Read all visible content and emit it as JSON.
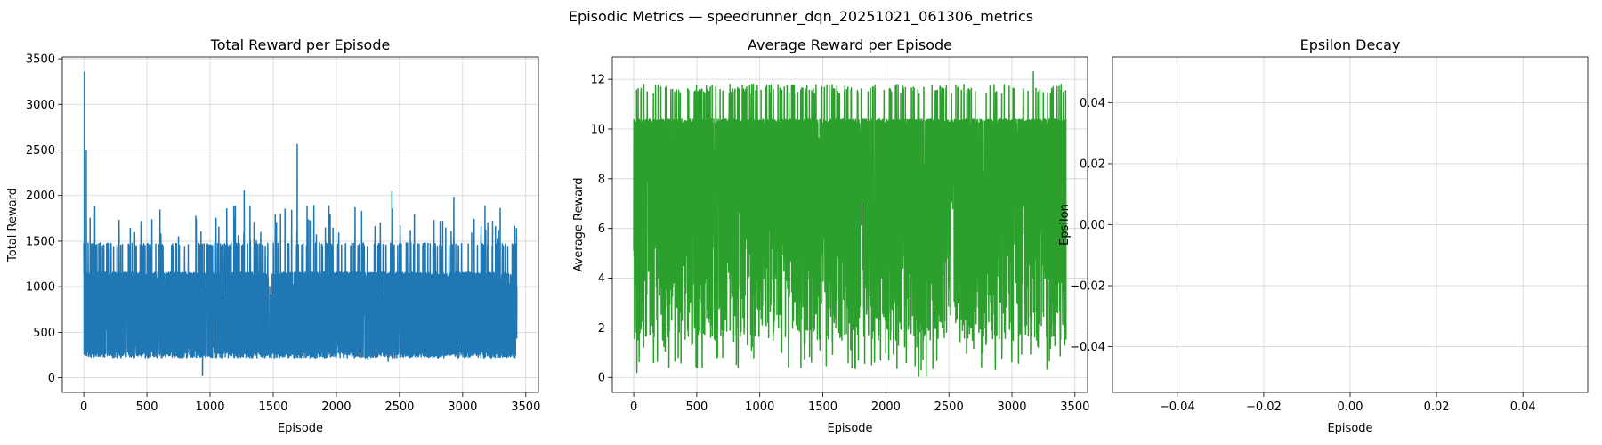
{
  "figure": {
    "suptitle": "Episodic Metrics — speedrunner_dqn_20251021_061306_metrics"
  },
  "chart_data": [
    {
      "type": "line",
      "title": "Total Reward per Episode",
      "xlabel": "Episode",
      "ylabel": "Total Reward",
      "xlim": [
        -170,
        3600
      ],
      "ylim": [
        -160,
        3520
      ],
      "xticks": [
        0,
        500,
        1000,
        1500,
        2000,
        2500,
        3000,
        3500
      ],
      "yticks": [
        0,
        500,
        1000,
        1500,
        2000,
        2500,
        3000,
        3500
      ],
      "grid": true,
      "series": [
        {
          "name": "Total Reward",
          "color": "#1f77b4",
          "episodes": 3430,
          "floor": [
            220,
            300
          ],
          "typical_high": 1160,
          "common_levels": [
            1160,
            1480
          ],
          "peaks": [
            [
              5,
              3350
            ],
            [
              20,
              2500
            ],
            [
              50,
              1750
            ],
            [
              1270,
              2050
            ],
            [
              1200,
              1880
            ],
            [
              1690,
              2560
            ],
            [
              2440,
              2040
            ],
            [
              2930,
              1980
            ],
            [
              3260,
              1660
            ],
            [
              3420,
              1280
            ]
          ],
          "dips": [
            [
              940,
              30
            ],
            [
              2410,
              180
            ],
            [
              2250,
              200
            ]
          ]
        }
      ]
    },
    {
      "type": "line",
      "title": "Average Reward per Episode",
      "xlabel": "Episode",
      "ylabel": "Average Reward",
      "xlim": [
        -170,
        3600
      ],
      "ylim": [
        -0.6,
        12.9
      ],
      "xticks": [
        0,
        500,
        1000,
        1500,
        2000,
        2500,
        3000,
        3500
      ],
      "yticks": [
        0,
        2,
        4,
        6,
        8,
        10,
        12
      ],
      "grid": true,
      "series": [
        {
          "name": "Average Reward",
          "color": "#2ca02c",
          "episodes": 3430,
          "typical_range": [
            1.5,
            10.4
          ],
          "common_levels": [
            10.4,
            11.8
          ],
          "peaks": [
            [
              3170,
              12.3
            ],
            [
              3390,
              11.8
            ]
          ],
          "dips": [
            [
              25,
              0.2
            ],
            [
              2260,
              0.05
            ],
            [
              2320,
              0.05
            ]
          ]
        }
      ]
    },
    {
      "type": "line",
      "title": "Epsilon Decay",
      "xlabel": "Episode",
      "ylabel": "Epsilon",
      "xlim": [
        -0.055,
        0.055
      ],
      "ylim": [
        -0.055,
        0.055
      ],
      "xticks": [
        -0.04,
        -0.02,
        0.0,
        0.02,
        0.04
      ],
      "yticks": [
        -0.04,
        -0.02,
        0.0,
        0.02,
        0.04
      ],
      "xticklabels": [
        "−0.04",
        "−0.02",
        "0.00",
        "0.02",
        "0.04"
      ],
      "yticklabels": [
        "−0.04",
        "−0.02",
        "0.00",
        "0.02",
        "0.04"
      ],
      "grid": true,
      "series": []
    }
  ]
}
